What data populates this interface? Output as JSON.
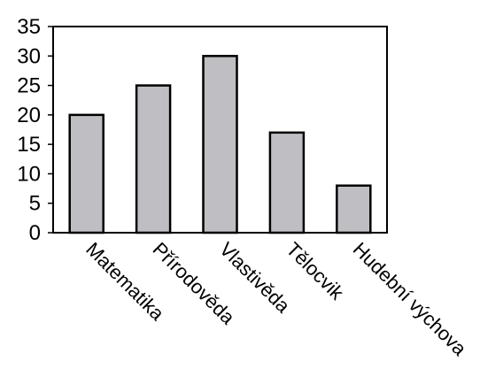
{
  "colors": {
    "bar_fill": "#bfbfc3",
    "bar_stroke": "#000000",
    "axis": "#000000",
    "text": "#000000",
    "background": "#ffffff"
  },
  "chart_data": {
    "type": "bar",
    "categories": [
      "Matematika",
      "Přírodověda",
      "Vlastivěda",
      "Tělocvik",
      "Hudební výchova"
    ],
    "values": [
      20,
      25,
      30,
      17,
      8
    ],
    "title": "",
    "xlabel": "",
    "ylabel": "",
    "ylim": [
      0,
      35
    ],
    "yticks": [
      0,
      5,
      10,
      15,
      20,
      25,
      30,
      35
    ],
    "grid": false,
    "legend": "none"
  }
}
